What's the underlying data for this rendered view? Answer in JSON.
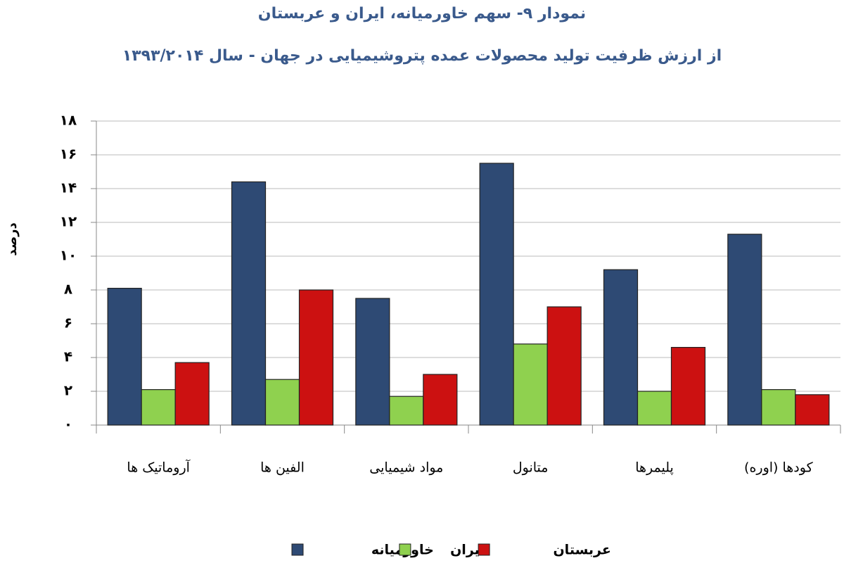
{
  "chart_data": {
    "type": "bar",
    "title": "نمودار ۹- سهم خاورمیانه، ایران و عربستان",
    "subtitle": "از ارزش ظرفیت تولید محصولات عمده پتروشیمیایی در جهان - سال ۱۳۹۳/۲۰۱۴",
    "y_label": "درصد",
    "categories": [
      "آروماتیک ها",
      "الفین ها",
      "مواد شیمیایی",
      "متانول",
      "پلیمرها",
      "کودها (اوره)"
    ],
    "series": [
      {
        "name": "خاورمیانه",
        "color": "#2e4a74",
        "values": [
          8.1,
          14.4,
          7.5,
          15.5,
          9.2,
          11.3
        ]
      },
      {
        "name": "ایران",
        "color": "#8fd14f",
        "values": [
          2.1,
          2.7,
          1.7,
          4.8,
          2.0,
          2.1
        ]
      },
      {
        "name": "عربستان",
        "color": "#cc1111",
        "values": [
          3.7,
          8.0,
          3.0,
          7.0,
          4.6,
          1.8
        ]
      }
    ],
    "ylim": [
      0,
      18
    ],
    "yticks": [
      {
        "value": 0,
        "label": "۰"
      },
      {
        "value": 2,
        "label": "۲"
      },
      {
        "value": 4,
        "label": "۴"
      },
      {
        "value": 6,
        "label": "۶"
      },
      {
        "value": 8,
        "label": "۸"
      },
      {
        "value": 10,
        "label": "۱۰"
      },
      {
        "value": 12,
        "label": "۱۲"
      },
      {
        "value": 14,
        "label": "۱۴"
      },
      {
        "value": 16,
        "label": "۱۶"
      },
      {
        "value": 18,
        "label": "۱۸"
      }
    ],
    "grid": true,
    "legend": "bottom"
  }
}
